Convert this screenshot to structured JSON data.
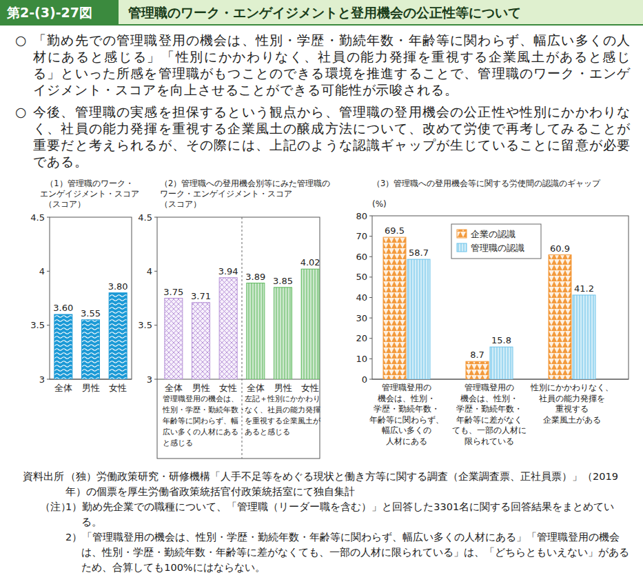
{
  "header": {
    "figure_number": "第2-(3)-27図",
    "title": "管理職のワーク・エンゲイジメントと登用機会の公正性等について"
  },
  "summary": {
    "bullet": "○",
    "paragraphs": [
      "「勤め先での管理職登用の機会は、性別・学歴・勤続年数・年齢等に関わらず、幅広い多くの人材にあると感じる」「性別にかかわりなく、社員の能力発揮を重視する企業風土があると感じる」といった所感を管理職がもつことのできる環境を推進することで、管理職のワーク・エンゲイジメント・スコアを向上させることができる可能性が示唆される。",
      "今後、管理職の実感を担保するという観点から、管理職の登用機会の公正性や性別にかかわりなく、社員の能力発揮を重視する企業風土の醸成方法について、改めて労使で再考してみることが重要だと考えられるが、その際には、上記のような認識ギャップが生じていることに留意が必要である。"
    ]
  },
  "chart_data": [
    {
      "type": "bar",
      "title": "（1）管理職のワーク・\nエンゲイジメント・スコア",
      "y_label": "（スコア）",
      "categories": [
        "全体",
        "男性",
        "女性"
      ],
      "values": [
        3.6,
        3.55,
        3.8
      ],
      "value_labels": [
        "3.60",
        "3.55",
        "3.80"
      ],
      "color": "#1c9ad6",
      "ylim": [
        3,
        4.5
      ],
      "yticks": [
        3,
        3.5,
        4,
        4.5
      ],
      "grid": false,
      "data_labels": true
    },
    {
      "type": "bar",
      "title": "（2）管理職への登用機会別等にみた管理職の\nワーク・エンゲイジメント・スコア",
      "y_label": "（スコア）",
      "categories": [
        "全体",
        "男性",
        "女性",
        "全体",
        "男性",
        "女性"
      ],
      "values": [
        3.75,
        3.71,
        3.94,
        3.89,
        3.85,
        4.02
      ],
      "colors": [
        "#b48fd6",
        "#b48fd6",
        "#b48fd6",
        "#5cb85c",
        "#5cb85c",
        "#5cb85c"
      ],
      "annotations": [
        "管理職登用の機会は、\n性別・学歴・勤続年数・\n年齢等に関わらず、幅\n広い多くの人材にある\nと感じる",
        "左記＋性別にかかわり\nなく、社員の能力発揮\nを重視する企業風土が\nあると感じる"
      ],
      "ylim": [
        3,
        4.5
      ],
      "yticks": [
        3,
        3.5,
        4,
        4.5
      ],
      "grid": false,
      "data_labels": true
    },
    {
      "type": "bar",
      "title": "（3）管理職への登用機会等に関する労使間の認識のギャップ",
      "y_label": "(%)",
      "categories": [
        "管理職登用の\n機会は、性別・\n学歴・勤続年数・\n年齢等に関わらず、\n幅広い多くの\n人材にある",
        "管理職登用の\n機会は、性別・\n学歴・勤続年数・\n年齢等に差がなく\nても、一部の人材に\n限られている",
        "性別にかかわりなく、\n社員の能力発揮を\n重視する\n企業風土がある"
      ],
      "series": [
        {
          "name": "企業の認識",
          "color": "#f39a3c",
          "values": [
            69.5,
            8.7,
            60.9
          ]
        },
        {
          "name": "管理職の認識",
          "color": "#6cc3ea",
          "values": [
            58.7,
            15.8,
            41.2
          ]
        }
      ],
      "ylim": [
        0,
        80
      ],
      "yticks": [
        0,
        10,
        20,
        30,
        40,
        50,
        60,
        70,
        80
      ],
      "grid": false,
      "legend": "top",
      "data_labels": true
    }
  ],
  "source": {
    "label": "資料出所",
    "text": "（独）労働政策研究・研修機構「人手不足等をめぐる現状と働き方等に関する調査（企業調査票、正社員票）」（2019年）の個票を厚生労働省政策統括官付政策統括室にて独自集計"
  },
  "notes": {
    "label": "（注）",
    "items": [
      "1）勤め先企業での職種について、「管理職（リーダー職を含む）」と回答した3301名に関する回答結果をまとめている。",
      "2）「管理職登用の機会は、性別・学歴・勤続年数・年齢等に関わらず、幅広い多くの人材にある」「管理職登用の機会は、性別・学歴・勤続年数・年齢等に差がなくても、一部の人材に限られている」は、「どちらともいえない」があるため、合算しても100%にはならない。"
    ]
  }
}
